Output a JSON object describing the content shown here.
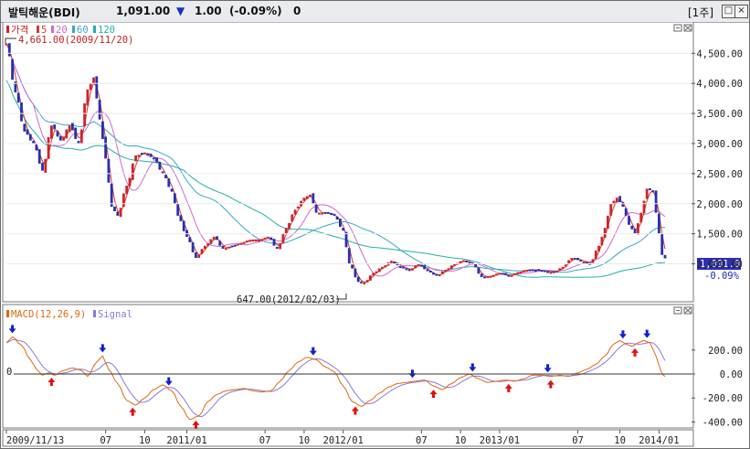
{
  "header": {
    "name": "발틱해운(BDI)",
    "price": "1,091.00",
    "change_arrow": "▼",
    "change": "1.00",
    "change_pct": "(-0.09%)",
    "volume": "0",
    "period_button": "[1주]"
  },
  "legend_price": {
    "label_price": "가격",
    "ma5": "5",
    "ma20": "20",
    "ma60": "60",
    "ma120": "120"
  },
  "legend_macd": {
    "macd": "MACD(12,26,9)",
    "signal": "Signal"
  },
  "annotations": {
    "high": "4,661.00(2009/11/20)",
    "low": "647.00(2012/02/03)",
    "last_price": "1,091.00",
    "last_pct": "-0.09%",
    "zero_line": "0"
  },
  "colors": {
    "up": "#d0232a",
    "down": "#2a2fb2",
    "ma5": "#d23c2c",
    "ma20": "#cc6ad0",
    "ma60": "#38a8c8",
    "ma120": "#20b0a8",
    "macd": "#e06810",
    "signal": "#8a7ad8",
    "signal_up": "#e01010",
    "signal_down": "#1020d0"
  },
  "chart_data": {
    "type": "candlestick",
    "price_axis": {
      "min": 400,
      "max": 4900,
      "ticks": [
        4500,
        4000,
        3500,
        3000,
        2500,
        2000,
        1500,
        1000
      ],
      "tick_labels": [
        "4,500.00",
        "4,000.00",
        "3,500.00",
        "3,000.00",
        "2,500.00",
        "2,000.00",
        "1,500.00",
        "1,000.00"
      ]
    },
    "macd_axis": {
      "min": -450,
      "max": 450,
      "ticks": [
        200,
        0,
        -200,
        -400
      ],
      "tick_labels": [
        "200.00",
        "0.00",
        "-200.00",
        "-400.00"
      ]
    },
    "x_labels": [
      {
        "label": "2009/11/13",
        "i": 0
      },
      {
        "label": "07",
        "i": 33
      },
      {
        "label": "10",
        "i": 46
      },
      {
        "label": "2011/01",
        "i": 60
      },
      {
        "label": "07",
        "i": 86
      },
      {
        "label": "10",
        "i": 99
      },
      {
        "label": "2012/01",
        "i": 112
      },
      {
        "label": "07",
        "i": 138
      },
      {
        "label": "10",
        "i": 151
      },
      {
        "label": "2013/01",
        "i": 164
      },
      {
        "label": "07",
        "i": 190
      },
      {
        "label": "10",
        "i": 204
      },
      {
        "label": "2014/01",
        "i": 217
      }
    ],
    "close_anchors": [
      [
        0,
        4661
      ],
      [
        3,
        3850
      ],
      [
        6,
        3200
      ],
      [
        9,
        3000
      ],
      [
        12,
        2550
      ],
      [
        15,
        3300
      ],
      [
        18,
        3050
      ],
      [
        21,
        3300
      ],
      [
        24,
        3000
      ],
      [
        27,
        3900
      ],
      [
        29,
        4100
      ],
      [
        31,
        3400
      ],
      [
        33,
        2750
      ],
      [
        35,
        1950
      ],
      [
        37,
        1800
      ],
      [
        40,
        2300
      ],
      [
        43,
        2800
      ],
      [
        46,
        2850
      ],
      [
        49,
        2750
      ],
      [
        52,
        2500
      ],
      [
        55,
        2200
      ],
      [
        57,
        1800
      ],
      [
        60,
        1450
      ],
      [
        63,
        1100
      ],
      [
        66,
        1300
      ],
      [
        69,
        1450
      ],
      [
        72,
        1250
      ],
      [
        75,
        1300
      ],
      [
        78,
        1350
      ],
      [
        81,
        1400
      ],
      [
        84,
        1400
      ],
      [
        87,
        1450
      ],
      [
        90,
        1250
      ],
      [
        93,
        1600
      ],
      [
        96,
        1900
      ],
      [
        99,
        2100
      ],
      [
        101,
        2150
      ],
      [
        103,
        1850
      ],
      [
        106,
        1850
      ],
      [
        109,
        1800
      ],
      [
        112,
        1550
      ],
      [
        114,
        1000
      ],
      [
        117,
        700
      ],
      [
        119,
        690
      ],
      [
        122,
        850
      ],
      [
        125,
        950
      ],
      [
        128,
        1050
      ],
      [
        131,
        950
      ],
      [
        134,
        900
      ],
      [
        137,
        1000
      ],
      [
        140,
        880
      ],
      [
        143,
        800
      ],
      [
        146,
        900
      ],
      [
        149,
        1000
      ],
      [
        152,
        1060
      ],
      [
        155,
        1000
      ],
      [
        158,
        780
      ],
      [
        161,
        800
      ],
      [
        164,
        850
      ],
      [
        167,
        800
      ],
      [
        170,
        860
      ],
      [
        173,
        900
      ],
      [
        176,
        900
      ],
      [
        179,
        880
      ],
      [
        182,
        860
      ],
      [
        185,
        950
      ],
      [
        188,
        1100
      ],
      [
        191,
        1050
      ],
      [
        194,
        1000
      ],
      [
        197,
        1300
      ],
      [
        199,
        1600
      ],
      [
        201,
        2000
      ],
      [
        203,
        2100
      ],
      [
        205,
        1950
      ],
      [
        207,
        1650
      ],
      [
        209,
        1500
      ],
      [
        211,
        1850
      ],
      [
        213,
        2250
      ],
      [
        215,
        2200
      ],
      [
        217,
        1500
      ],
      [
        218,
        1150
      ],
      [
        219,
        1091
      ]
    ],
    "macd_anchors": [
      [
        0,
        260
      ],
      [
        2,
        310
      ],
      [
        5,
        240
      ],
      [
        8,
        120
      ],
      [
        10,
        40
      ],
      [
        12,
        -10
      ],
      [
        14,
        10
      ],
      [
        16,
        -10
      ],
      [
        19,
        30
      ],
      [
        22,
        50
      ],
      [
        25,
        30
      ],
      [
        27,
        -20
      ],
      [
        30,
        100
      ],
      [
        32,
        150
      ],
      [
        34,
        40
      ],
      [
        37,
        -80
      ],
      [
        40,
        -220
      ],
      [
        43,
        -260
      ],
      [
        46,
        -200
      ],
      [
        49,
        -130
      ],
      [
        52,
        -90
      ],
      [
        55,
        -140
      ],
      [
        58,
        -270
      ],
      [
        61,
        -380
      ],
      [
        64,
        -350
      ],
      [
        67,
        -230
      ],
      [
        70,
        -170
      ],
      [
        73,
        -140
      ],
      [
        76,
        -130
      ],
      [
        79,
        -120
      ],
      [
        82,
        -140
      ],
      [
        85,
        -150
      ],
      [
        88,
        -140
      ],
      [
        91,
        -60
      ],
      [
        94,
        30
      ],
      [
        97,
        100
      ],
      [
        100,
        140
      ],
      [
        103,
        120
      ],
      [
        106,
        60
      ],
      [
        109,
        20
      ],
      [
        112,
        -100
      ],
      [
        115,
        -230
      ],
      [
        118,
        -270
      ],
      [
        121,
        -220
      ],
      [
        124,
        -160
      ],
      [
        127,
        -110
      ],
      [
        130,
        -80
      ],
      [
        133,
        -70
      ],
      [
        136,
        -60
      ],
      [
        139,
        -50
      ],
      [
        142,
        -100
      ],
      [
        145,
        -130
      ],
      [
        148,
        -80
      ],
      [
        151,
        -30
      ],
      [
        154,
        0
      ],
      [
        157,
        -40
      ],
      [
        160,
        -70
      ],
      [
        163,
        -60
      ],
      [
        166,
        -50
      ],
      [
        169,
        -60
      ],
      [
        172,
        -40
      ],
      [
        175,
        -10
      ],
      [
        178,
        -10
      ],
      [
        181,
        -20
      ],
      [
        184,
        -10
      ],
      [
        187,
        -20
      ],
      [
        190,
        10
      ],
      [
        193,
        40
      ],
      [
        196,
        80
      ],
      [
        199,
        150
      ],
      [
        202,
        250
      ],
      [
        204,
        280
      ],
      [
        206,
        250
      ],
      [
        208,
        230
      ],
      [
        210,
        260
      ],
      [
        212,
        280
      ],
      [
        214,
        260
      ],
      [
        216,
        150
      ],
      [
        218,
        0
      ],
      [
        219,
        -20
      ]
    ],
    "signal_arrows": [
      {
        "i": 2,
        "dir": "down"
      },
      {
        "i": 15,
        "dir": "up"
      },
      {
        "i": 32,
        "dir": "down"
      },
      {
        "i": 42,
        "dir": "up"
      },
      {
        "i": 54,
        "dir": "down"
      },
      {
        "i": 63,
        "dir": "up"
      },
      {
        "i": 102,
        "dir": "down"
      },
      {
        "i": 116,
        "dir": "up"
      },
      {
        "i": 135,
        "dir": "down"
      },
      {
        "i": 142,
        "dir": "up"
      },
      {
        "i": 155,
        "dir": "down"
      },
      {
        "i": 167,
        "dir": "up"
      },
      {
        "i": 180,
        "dir": "down"
      },
      {
        "i": 181,
        "dir": "up"
      },
      {
        "i": 205,
        "dir": "down"
      },
      {
        "i": 209,
        "dir": "up"
      },
      {
        "i": 213,
        "dir": "down"
      }
    ]
  }
}
